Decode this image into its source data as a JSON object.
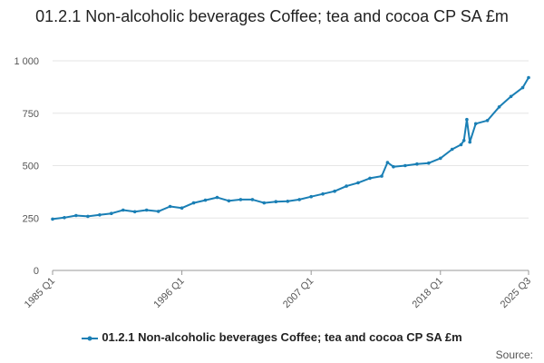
{
  "title": "01.2.1 Non-alcoholic beverages Coffee; tea and cocoa CP SA £m",
  "source_label": "Source:",
  "colors": {
    "series": "#1a7fb5",
    "grid": "#e6e6e6",
    "axis": "#999999",
    "tick_text": "#555555"
  },
  "chart_data": {
    "type": "line",
    "title": "01.2.1 Non-alcoholic beverages Coffee; tea and cocoa CP SA £m",
    "xlabel": "",
    "ylabel": "",
    "x_range": [
      "1985 Q1",
      "2025 Q3"
    ],
    "x_ticks": [
      "1985 Q1",
      "1996 Q1",
      "2007 Q1",
      "2018 Q1",
      "2025 Q3"
    ],
    "ylim": [
      0,
      1000
    ],
    "y_ticks": [
      0,
      250,
      500,
      750,
      1000
    ],
    "y_tick_labels": [
      "0",
      "250",
      "500",
      "750",
      "1 000"
    ],
    "grid": true,
    "legend_position": "bottom",
    "series": [
      {
        "name": "01.2.1 Non-alcoholic beverages Coffee; tea and cocoa CP SA £m",
        "x": [
          "1985 Q1",
          "1986 Q1",
          "1987 Q1",
          "1988 Q1",
          "1989 Q1",
          "1990 Q1",
          "1991 Q1",
          "1992 Q1",
          "1993 Q1",
          "1994 Q1",
          "1995 Q1",
          "1996 Q1",
          "1997 Q1",
          "1998 Q1",
          "1999 Q1",
          "2000 Q1",
          "2001 Q1",
          "2002 Q1",
          "2003 Q1",
          "2004 Q1",
          "2005 Q1",
          "2006 Q1",
          "2007 Q1",
          "2008 Q1",
          "2009 Q1",
          "2010 Q1",
          "2011 Q1",
          "2012 Q1",
          "2013 Q1",
          "2013 Q3",
          "2014 Q1",
          "2015 Q1",
          "2016 Q1",
          "2017 Q1",
          "2018 Q1",
          "2019 Q1",
          "2019 Q4",
          "2020 Q1",
          "2020 Q2",
          "2020 Q3",
          "2021 Q1",
          "2022 Q1",
          "2023 Q1",
          "2024 Q1",
          "2025 Q1",
          "2025 Q3"
        ],
        "values": [
          245,
          252,
          262,
          258,
          265,
          272,
          288,
          280,
          288,
          282,
          305,
          298,
          322,
          335,
          348,
          332,
          338,
          338,
          322,
          328,
          330,
          338,
          352,
          365,
          378,
          402,
          418,
          440,
          450,
          515,
          495,
          500,
          508,
          512,
          535,
          578,
          600,
          620,
          720,
          612,
          700,
          715,
          780,
          830,
          872,
          920
        ]
      }
    ]
  }
}
